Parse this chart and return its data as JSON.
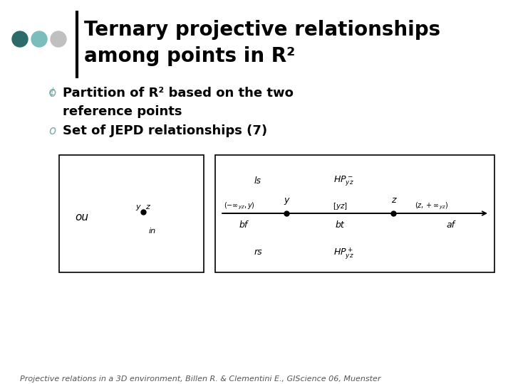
{
  "title_line1": "Ternary projective relationships",
  "title_line2": "among points in R²",
  "bullet1_line1": "Partition of R² based on the two",
  "bullet1_line2": "reference points",
  "bullet2": "Set of JEPD relationships (7)",
  "footer": "Projective relations in a 3D environment, Billen R. & Clementini E., GIScience 06, Muenster",
  "dot_colors": [
    "#2d6b6b",
    "#7bbcbc",
    "#c0c0c0"
  ],
  "bg_color": "#ffffff",
  "title_color": "#000000",
  "bullet_marker_color": "#7aacac",
  "bullet_text_color": "#000000",
  "footer_color": "#555555"
}
